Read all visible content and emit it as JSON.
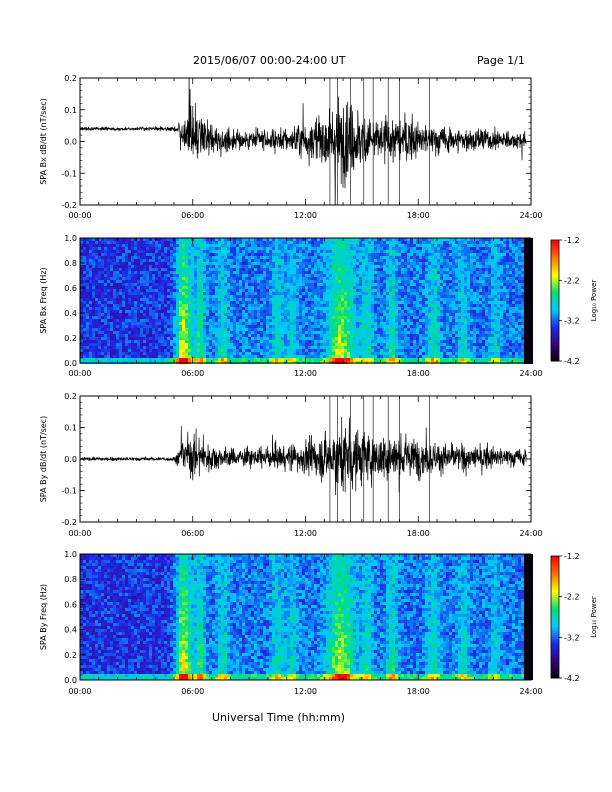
{
  "header": {
    "title": "2015/06/07  00:00-24:00 UT",
    "page": "Page 1/1"
  },
  "xaxis": {
    "label": "Universal Time (hh:mm)",
    "ticks": [
      "00:00",
      "06:00",
      "12:00",
      "18:00",
      "24:00"
    ],
    "range_hours": [
      0,
      24
    ]
  },
  "colorbar": {
    "label": "Log₁₀ Power",
    "ticks": [
      "-1.2",
      "-2.2",
      "-3.2",
      "-4.2"
    ],
    "range": [
      -4.2,
      -1.2
    ],
    "colors": [
      "#000000",
      "#3c0078",
      "#1f26e6",
      "#00c8ff",
      "#00e070",
      "#ffff00",
      "#ff7800",
      "#ff0000"
    ]
  },
  "chart_data": [
    {
      "type": "line",
      "ylabel": "SPA Bx dB/dt (nT/sec)",
      "ylim": [
        -0.2,
        0.2
      ],
      "yticks": [
        "-0.2",
        "-0.1",
        "0.0",
        "0.1",
        "0.2"
      ],
      "baseline": 0.0,
      "pre_event_offset": 0.04,
      "amplitude_envelope": [
        {
          "t": 0.0,
          "amp": 0.008
        },
        {
          "t": 5.0,
          "amp": 0.009
        },
        {
          "t": 5.4,
          "amp": 0.05
        },
        {
          "t": 5.9,
          "amp": 0.14
        },
        {
          "t": 6.5,
          "amp": 0.09
        },
        {
          "t": 7.5,
          "amp": 0.06
        },
        {
          "t": 9.0,
          "amp": 0.05
        },
        {
          "t": 11.0,
          "amp": 0.06
        },
        {
          "t": 13.0,
          "amp": 0.12
        },
        {
          "t": 14.0,
          "amp": 0.2
        },
        {
          "t": 15.5,
          "amp": 0.11
        },
        {
          "t": 16.5,
          "amp": 0.12
        },
        {
          "t": 18.0,
          "amp": 0.08
        },
        {
          "t": 20.0,
          "amp": 0.06
        },
        {
          "t": 22.0,
          "amp": 0.05
        },
        {
          "t": 23.8,
          "amp": 0.04
        }
      ]
    },
    {
      "type": "heatmap",
      "ylabel": "SPA Bx Freq (Hz)",
      "ylim": [
        0.0,
        1.0
      ],
      "yticks": [
        "0.0",
        "0.2",
        "0.4",
        "0.6",
        "0.8",
        "1.0"
      ],
      "zlim": [
        -4.2,
        -1.2
      ]
    },
    {
      "type": "line",
      "ylabel": "SPA By dB/dt (nT/sec)",
      "ylim": [
        -0.2,
        0.2
      ],
      "yticks": [
        "-0.2",
        "-0.1",
        "0.0",
        "0.1",
        "0.2"
      ],
      "baseline": 0.0,
      "pre_event_offset": 0.0,
      "amplitude_envelope": [
        {
          "t": 0.0,
          "amp": 0.008
        },
        {
          "t": 5.0,
          "amp": 0.009
        },
        {
          "t": 5.4,
          "amp": 0.06
        },
        {
          "t": 5.9,
          "amp": 0.13
        },
        {
          "t": 6.5,
          "amp": 0.08
        },
        {
          "t": 7.5,
          "amp": 0.05
        },
        {
          "t": 9.0,
          "amp": 0.04
        },
        {
          "t": 11.0,
          "amp": 0.06
        },
        {
          "t": 13.0,
          "amp": 0.11
        },
        {
          "t": 14.0,
          "amp": 0.18
        },
        {
          "t": 15.5,
          "amp": 0.11
        },
        {
          "t": 16.5,
          "amp": 0.12
        },
        {
          "t": 18.0,
          "amp": 0.09
        },
        {
          "t": 20.0,
          "amp": 0.06
        },
        {
          "t": 22.0,
          "amp": 0.05
        },
        {
          "t": 23.8,
          "amp": 0.04
        }
      ]
    },
    {
      "type": "heatmap",
      "ylabel": "SPA By Freq (Hz)",
      "ylim": [
        0.0,
        1.0
      ],
      "yticks": [
        "0.0",
        "0.2",
        "0.4",
        "0.6",
        "0.8",
        "1.0"
      ],
      "zlim": [
        -4.2,
        -1.2
      ]
    }
  ],
  "spectrogram_features": {
    "activity_bands_hours": [
      {
        "t": 5.5,
        "w": 0.45,
        "strength": 1.0
      },
      {
        "t": 6.4,
        "w": 0.25,
        "strength": 0.6
      },
      {
        "t": 7.6,
        "w": 0.3,
        "strength": 0.45
      },
      {
        "t": 10.5,
        "w": 0.35,
        "strength": 0.4
      },
      {
        "t": 11.3,
        "w": 0.3,
        "strength": 0.35
      },
      {
        "t": 13.9,
        "w": 0.7,
        "strength": 0.9
      },
      {
        "t": 15.3,
        "w": 0.3,
        "strength": 0.45
      },
      {
        "t": 16.6,
        "w": 0.3,
        "strength": 0.5
      },
      {
        "t": 18.8,
        "w": 0.35,
        "strength": 0.45
      },
      {
        "t": 20.4,
        "w": 0.3,
        "strength": 0.4
      },
      {
        "t": 22.1,
        "w": 0.25,
        "strength": 0.35
      }
    ],
    "low_freq_enhancement_hz": 0.05,
    "dark_gap_hours": [
      23.6,
      24.0
    ]
  }
}
